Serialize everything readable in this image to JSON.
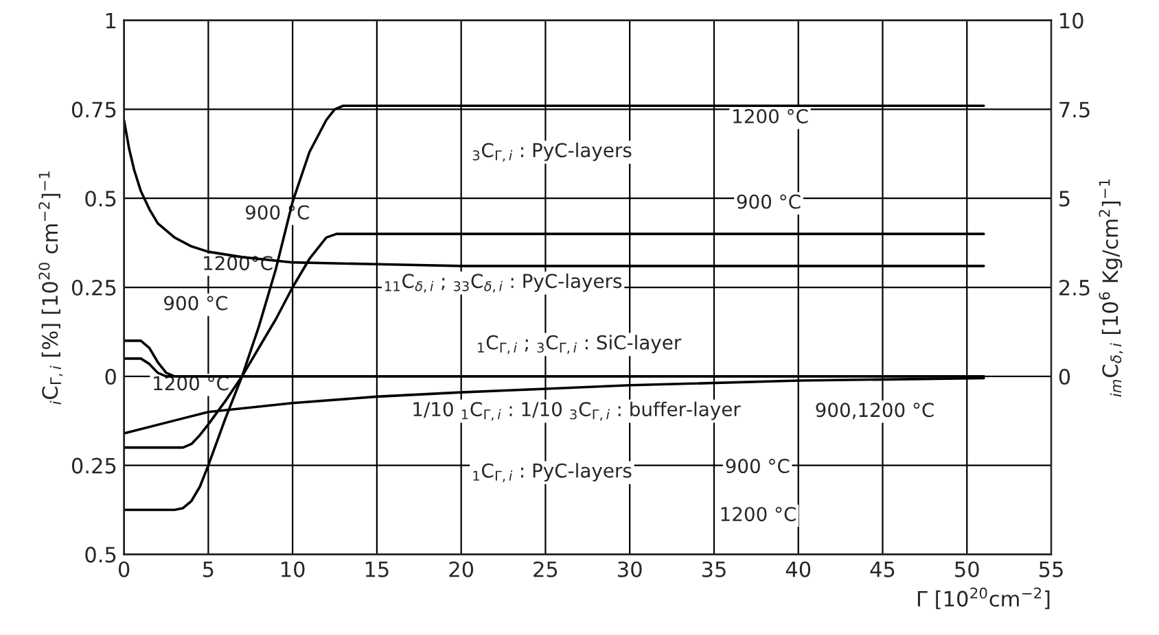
{
  "chart_data": {
    "type": "line",
    "xlabel": "Γ [10$^{20}$cm$^{−2}$]",
    "ylabel": "$_{i}$C$_{Γ,i}$ [%] [10$^{20}$ cm$^{−2}$]$^{−1}$",
    "y2label": "$_{im}$C$_{δ,i}$ [10$^{6}$ Kg/cm$^{2}$]$^{−1}$",
    "xlim": [
      0,
      55
    ],
    "xticks": [
      0,
      5,
      10,
      15,
      20,
      25,
      30,
      35,
      40,
      45,
      50,
      55
    ],
    "ylim": [
      -0.5,
      1
    ],
    "yticks": [
      {
        "value": -0.5,
        "label": "0.5"
      },
      {
        "value": -0.25,
        "label": "0.25"
      },
      0,
      0.25,
      0.5,
      0.75,
      1
    ],
    "y2lim": [
      -5,
      10
    ],
    "y2ticks": [
      0,
      2.5,
      5,
      7.5,
      10
    ],
    "grid": true,
    "series": [
      {
        "color": "#000000",
        "x": [
          0,
          3,
          3.5,
          4,
          4.5,
          5,
          6,
          7,
          8,
          9,
          10,
          11,
          12,
          12.5,
          13,
          14,
          51
        ],
        "values": [
          -0.375,
          -0.375,
          -0.37,
          -0.35,
          -0.31,
          -0.25,
          -0.12,
          0.0,
          0.14,
          0.3,
          0.49,
          0.63,
          0.72,
          0.75,
          0.76,
          0.76,
          0.76
        ]
      },
      {
        "color": "#000000",
        "x": [
          0,
          3.5,
          4,
          4.5,
          5,
          6,
          7,
          8,
          9,
          10,
          11,
          12,
          12.6,
          13,
          51
        ],
        "values": [
          -0.2,
          -0.2,
          -0.19,
          -0.165,
          -0.135,
          -0.07,
          0.0,
          0.08,
          0.16,
          0.25,
          0.33,
          0.39,
          0.4,
          0.4,
          0.4
        ]
      },
      {
        "color": "#000000",
        "x": [
          0,
          0.3,
          0.6,
          1,
          1.5,
          2,
          3,
          4,
          5,
          7,
          10,
          15,
          20,
          51
        ],
        "values": [
          0.72,
          0.64,
          0.58,
          0.52,
          0.47,
          0.43,
          0.39,
          0.365,
          0.35,
          0.335,
          0.32,
          0.315,
          0.31,
          0.31
        ]
      },
      {
        "color": "#000000",
        "x": [
          0,
          1,
          1.5,
          2,
          2.5,
          3,
          51
        ],
        "values": [
          0.1,
          0.1,
          0.08,
          0.04,
          0.01,
          0,
          0
        ]
      },
      {
        "color": "#000000",
        "x": [
          0,
          1,
          1.5,
          2,
          2.5,
          51
        ],
        "values": [
          0.05,
          0.05,
          0.035,
          0.01,
          0,
          0
        ]
      },
      {
        "color": "#000000",
        "x": [
          0,
          5,
          10,
          15,
          20,
          25,
          30,
          40,
          51
        ],
        "values": [
          -0.16,
          -0.1,
          -0.075,
          -0.057,
          -0.045,
          -0.035,
          -0.025,
          -0.012,
          -0.005
        ]
      }
    ],
    "annotations": [
      "1200 °C",
      "$_{3}$C$_{Γ,i}$ : PyC-layers",
      "900 °C",
      "900 °C",
      "1200°C",
      "$_{11}$C$_{δ,i}$ ; $_{33}$C$_{δ,i}$ : PyC-layers",
      "900 °C",
      "$_{1}$C$_{Γ,i}$ ; $_{3}$C$_{Γ,i}$ : SiC-layer",
      "1200 °C",
      "1/10 $_{1}$C$_{Γ,i}$ : 1/10 $_{3}$C$_{Γ,i}$ : buffer-layer",
      "900,1200 °C",
      "$_{1}$C$_{Γ,i}$ : PyC-layers",
      "900 °C",
      "1200 °C"
    ]
  }
}
